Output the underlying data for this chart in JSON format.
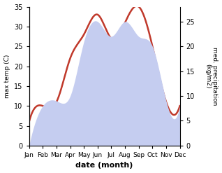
{
  "months": [
    "Jan",
    "Feb",
    "Mar",
    "Apr",
    "May",
    "Jun",
    "Jul",
    "Aug",
    "Sep",
    "Oct",
    "Nov",
    "Dec"
  ],
  "temperature": [
    6,
    10,
    11,
    22,
    28,
    33,
    27,
    31,
    35,
    25,
    11,
    10
  ],
  "precipitation": [
    0,
    8,
    9,
    10,
    21,
    25,
    22,
    25,
    22,
    20,
    9,
    8
  ],
  "temp_color": "#c0392b",
  "precip_fill_color": "#c5cdf0",
  "xlabel": "date (month)",
  "ylabel_left": "max temp (C)",
  "ylabel_right": "med. precipitation\n(kg/m2)",
  "ylim_left": [
    0,
    35
  ],
  "ylim_right": [
    0,
    28
  ],
  "yticks_left": [
    0,
    5,
    10,
    15,
    20,
    25,
    30,
    35
  ],
  "yticks_right": [
    0,
    5,
    10,
    15,
    20,
    25
  ],
  "background_color": "#ffffff",
  "temp_linewidth": 1.8,
  "figsize": [
    3.18,
    2.47
  ],
  "dpi": 100
}
